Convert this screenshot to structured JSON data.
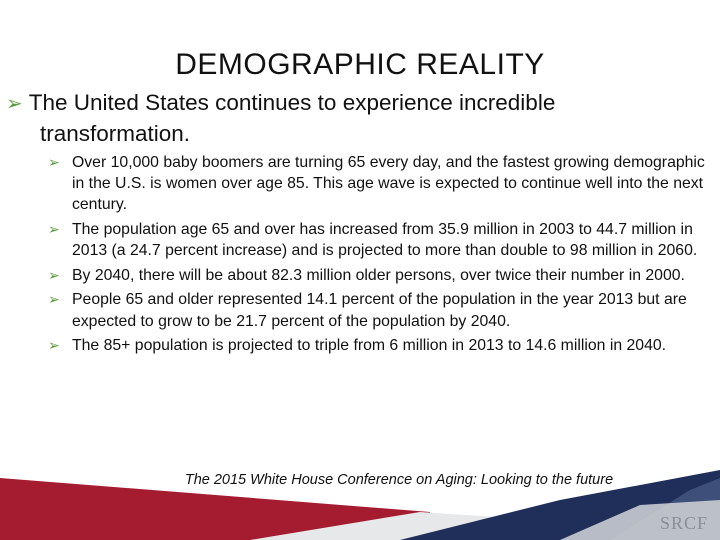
{
  "slide": {
    "title": "DEMOGRAPHIC REALITY",
    "main_bullet_line1": "The United States continues to experience incredible",
    "main_bullet_line2": "transformation.",
    "sub_bullets": [
      "Over 10,000 baby boomers are turning 65 every day, and the fastest growing demographic in the U.S. is women over age 85. This age wave is expected to continue well into the next century.",
      "The population age 65 and over has increased from 35.9 million in 2003 to 44.7 million in 2013 (a 24.7 percent increase) and is projected to more than double to 98 million in 2060.",
      "By 2040, there will be about 82.3 million older persons, over twice their number in 2000.",
      "People 65 and older represented 14.1 percent of the population in the year 2013 but are expected to grow to be 21.7 percent of the population by 2040.",
      "The 85+ population is projected to triple from 6 million in 2013 to 14.6 million in 2040."
    ],
    "source": "The 2015 White House Conference on Aging: Looking to the future",
    "logo_text": "SRCF"
  },
  "colors": {
    "bullet_arrow": "#5a9a3a",
    "banner_red": "#a51c30",
    "banner_navy": "#1f2f5a",
    "banner_gray": "#c9ccd1"
  },
  "icons": {
    "bullet": "arrow-bullet-icon"
  }
}
